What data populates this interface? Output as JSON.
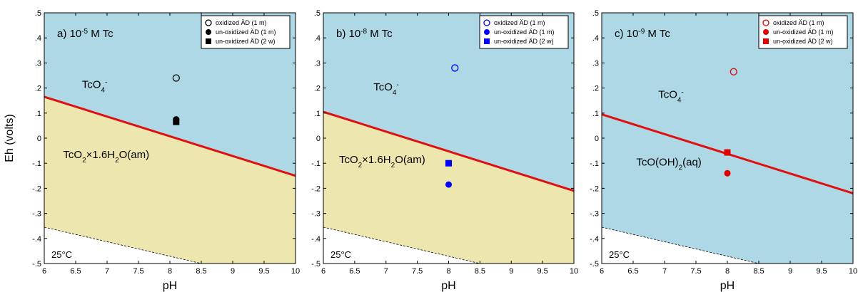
{
  "chart_data": [
    {
      "type": "scatter",
      "panel_label": "a) 10",
      "panel_label_exp": "-5",
      "panel_label_suffix": " M Tc",
      "xlabel": "pH",
      "ylabel": "Eh (volts)",
      "xlim": [
        6,
        10
      ],
      "ylim": [
        -0.5,
        0.5
      ],
      "xticks": [
        "6",
        "6.5",
        "7",
        "7.5",
        "8",
        "8.5",
        "9",
        "9.5",
        "10"
      ],
      "yticks": [
        ".5",
        ".4",
        ".3",
        ".2",
        ".1",
        "0",
        "-.1",
        "-.2",
        "-.3",
        "-.4",
        "-.5"
      ],
      "boundary_line": [
        [
          6,
          0.165
        ],
        [
          10,
          -0.15
        ]
      ],
      "lower_region": "solid",
      "water_limit": [
        [
          6,
          -0.355
        ],
        [
          8.5,
          -0.5
        ]
      ],
      "region_labels": [
        {
          "base": "TcO",
          "sub": "4",
          "sup": "-",
          "x": 6.6,
          "y": 0.2
        },
        {
          "base": "TcO",
          "sub": "2",
          "rest": "×1.6H",
          "sub2": "2",
          "rest2": "O(am)",
          "x": 6.3,
          "y": -0.08
        }
      ],
      "temperature": "25°C",
      "color": "#000000",
      "legend": [
        {
          "marker": "open-circle",
          "label": "oxidized ÄD (1 m)"
        },
        {
          "marker": "filled-circle",
          "label": "un-oxidized ÄD (1 m)"
        },
        {
          "marker": "filled-square",
          "label": "un-oxidized ÄD (2 w)"
        }
      ],
      "points": [
        {
          "marker": "open-circle",
          "x": 8.1,
          "y": 0.24
        },
        {
          "marker": "filled-circle",
          "x": 8.1,
          "y": 0.075
        },
        {
          "marker": "filled-square",
          "x": 8.1,
          "y": 0.065
        }
      ]
    },
    {
      "type": "scatter",
      "panel_label": "b) 10",
      "panel_label_exp": "-8",
      "panel_label_suffix": " M Tc",
      "xlabel": "pH",
      "ylabel": "",
      "xlim": [
        6,
        10
      ],
      "ylim": [
        -0.5,
        0.5
      ],
      "xticks": [
        "6",
        "6.5",
        "7",
        "7.5",
        "8",
        "8.5",
        "9",
        "9.5",
        "10"
      ],
      "yticks": [
        ".5",
        ".4",
        ".3",
        ".2",
        ".1",
        "0",
        "-.1",
        "-.2",
        "-.3",
        "-.4",
        "-.5"
      ],
      "boundary_line": [
        [
          6,
          0.105
        ],
        [
          10,
          -0.21
        ]
      ],
      "lower_region": "solid",
      "water_limit": [
        [
          6,
          -0.355
        ],
        [
          8.5,
          -0.5
        ]
      ],
      "region_labels": [
        {
          "base": "TcO",
          "sub": "4",
          "sup": "-",
          "x": 6.8,
          "y": 0.19
        },
        {
          "base": "TcO",
          "sub": "2",
          "rest": "×1.6H",
          "sub2": "2",
          "rest2": "O(am)",
          "x": 6.25,
          "y": -0.1
        }
      ],
      "temperature": "25°C",
      "color": "#0000ff",
      "legend": [
        {
          "marker": "open-circle",
          "label": "oxidized ÄD (1 m)"
        },
        {
          "marker": "filled-circle",
          "label": "un-oxidized ÄD (1 m)"
        },
        {
          "marker": "filled-square",
          "label": "un-oxidized ÄD (2 w)"
        }
      ],
      "points": [
        {
          "marker": "open-circle",
          "x": 8.1,
          "y": 0.28
        },
        {
          "marker": "filled-square",
          "x": 8.0,
          "y": -0.1
        },
        {
          "marker": "filled-circle",
          "x": 8.0,
          "y": -0.185
        }
      ]
    },
    {
      "type": "scatter",
      "panel_label": "c) 10",
      "panel_label_exp": "-9",
      "panel_label_suffix": " M Tc",
      "xlabel": "pH",
      "ylabel": "",
      "xlim": [
        6,
        10
      ],
      "ylim": [
        -0.5,
        0.5
      ],
      "xticks": [
        "6",
        "6.5",
        "7",
        "7.5",
        "8",
        "8.5",
        "9",
        "9.5",
        "10"
      ],
      "yticks": [
        ".5",
        ".4",
        ".3",
        ".2",
        ".1",
        "0",
        "-.1",
        "-.2",
        "-.3",
        "-.4",
        "-.5"
      ],
      "boundary_line": [
        [
          6,
          0.095
        ],
        [
          10,
          -0.22
        ]
      ],
      "lower_region": "aqueous",
      "water_limit": [
        [
          6,
          -0.355
        ],
        [
          8.5,
          -0.5
        ]
      ],
      "region_labels": [
        {
          "base": "TcO",
          "sub": "4",
          "sup": "-",
          "x": 6.9,
          "y": 0.16
        },
        {
          "base": "TcO(OH)",
          "sub": "2",
          "rest": "(aq)",
          "x": 6.55,
          "y": -0.11
        }
      ],
      "temperature": "25°C",
      "color": "#e00000",
      "legend": [
        {
          "marker": "open-circle",
          "label": "oxidized ÄD (1 m)"
        },
        {
          "marker": "filled-circle",
          "label": "un-oxidized ÄD (1 m)"
        },
        {
          "marker": "filled-square",
          "label": "un-oxidized ÄD (2 w)"
        }
      ],
      "points": [
        {
          "marker": "open-circle",
          "x": 8.1,
          "y": 0.265
        },
        {
          "marker": "filled-square",
          "x": 8.0,
          "y": -0.057
        },
        {
          "marker": "filled-circle",
          "x": 8.0,
          "y": -0.14
        }
      ]
    }
  ],
  "colors": {
    "upper_region": "#aed8e6",
    "solid_region": "#ede7af",
    "boundary": "#e01010",
    "water_limit": "#000000"
  }
}
